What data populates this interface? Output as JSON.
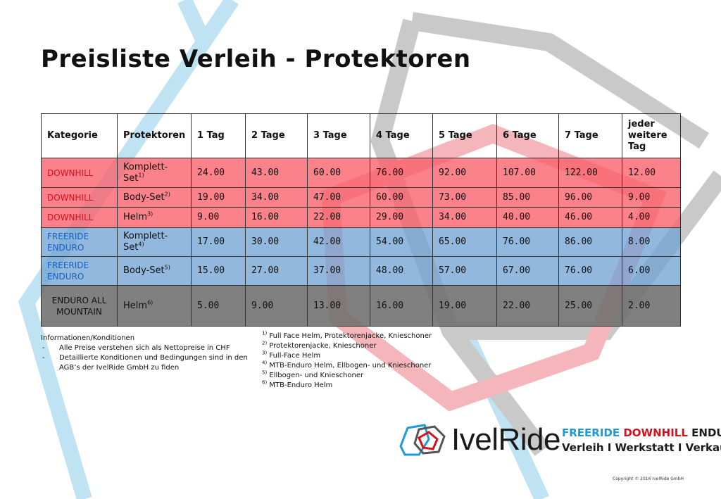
{
  "colors": {
    "downhill": "#d4101c",
    "freeride": "#1860c8",
    "brand_blue": "#1a9ad8"
  },
  "title": "Preisliste Verleih - Protektoren",
  "table": {
    "headers": [
      "Kategorie",
      "Protektoren",
      "1 Tag",
      "2 Tage",
      "3 Tage",
      "4 Tage",
      "5 Tage",
      "6 Tage",
      "7 Tage",
      "jeder weitere Tag"
    ],
    "rows": [
      {
        "category": "DOWNHILL",
        "item": "Komplett-Set",
        "sup": "1)",
        "prices": [
          "24.00",
          "43.00",
          "60.00",
          "76.00",
          "92.00",
          "107.00",
          "122.00",
          "12.00"
        ]
      },
      {
        "category": "DOWNHILL",
        "item": "Body-Set",
        "sup": "2)",
        "prices": [
          "19.00",
          "34.00",
          "47.00",
          "60.00",
          "73.00",
          "85.00",
          "96.00",
          "9.00"
        ]
      },
      {
        "category": "DOWNHILL",
        "item": "Helm",
        "sup": "3)",
        "prices": [
          "9.00",
          "16.00",
          "22.00",
          "29.00",
          "34.00",
          "40.00",
          "46.00",
          "4.00"
        ]
      },
      {
        "category": "FREERIDE ENDURO",
        "item": "Komplett-Set",
        "sup": "4)",
        "prices": [
          "17.00",
          "30.00",
          "42.00",
          "54.00",
          "65.00",
          "76.00",
          "86.00",
          "8.00"
        ]
      },
      {
        "category": "FREERIDE ENDURO",
        "item": "Body-Set",
        "sup": "5)",
        "prices": [
          "15.00",
          "27.00",
          "37.00",
          "48.00",
          "57.00",
          "67.00",
          "76.00",
          "6.00"
        ]
      },
      {
        "category": "ENDURO ALL MOUNTAIN",
        "item": "Helm",
        "sup": "6)",
        "prices": [
          "5.00",
          "9.00",
          "13.00",
          "16.00",
          "19.00",
          "22.00",
          "25.00",
          "2.00"
        ]
      }
    ]
  },
  "info": {
    "heading": "Informationen/Konditionen",
    "items": [
      "Alle Preise verstehen sich als Nettopreise in CHF",
      "Detaillierte Konditionen und Bedingungen sind in den AGB’s der IvelRide GmbH zu fiden"
    ]
  },
  "footnotes": [
    {
      "mark": "1)",
      "text": "Full Face Helm,  Protektorenjacke, Knieschoner"
    },
    {
      "mark": "2)",
      "text": "Protektorenjacke, Knieschoner"
    },
    {
      "mark": "3)",
      "text": "Full-Face Helm"
    },
    {
      "mark": "4)",
      "text": "MTB-Enduro Helm, Ellbogen- und Knieschoner"
    },
    {
      "mark": "5)",
      "text": "Ellbogen- und Knieschoner"
    },
    {
      "mark": "6)",
      "text": "MTB-Enduro Helm"
    }
  ],
  "logo": {
    "brand": "IvelRide",
    "tag_freeride": "FREERIDE",
    "tag_downhill": "DOWNHILL",
    "tag_enduro": "ENDURO",
    "tagline": "Verleih I Werkstatt I Verkauf",
    "icon": "hexagon-logo-icon"
  },
  "copyright": "Copyright  © 2016 IvelRide  GmbH"
}
